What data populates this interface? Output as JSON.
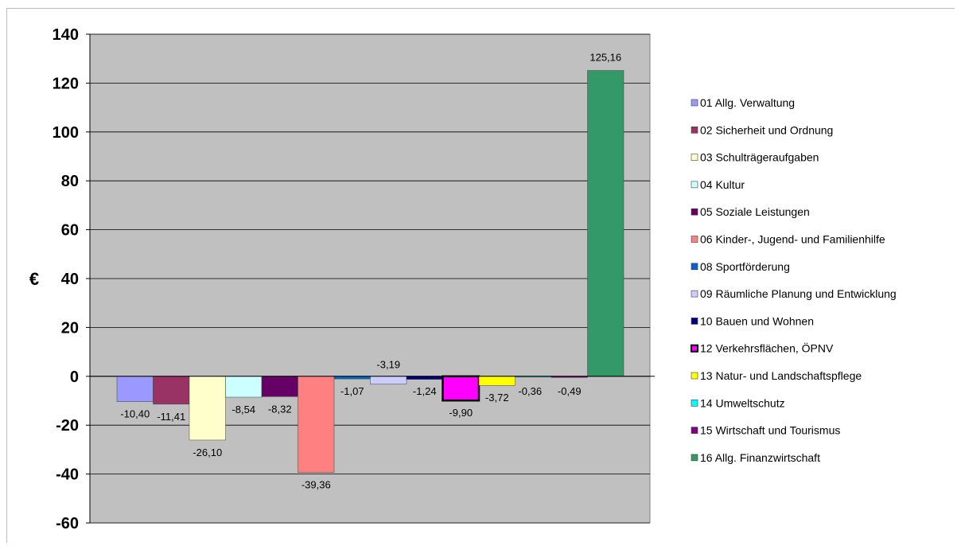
{
  "chart_data": {
    "type": "bar",
    "title": "",
    "xlabel": "",
    "ylabel": "€",
    "ylim": [
      -60,
      140
    ],
    "ytick_step": 20,
    "grid": true,
    "legend_position": "right",
    "plot_background": "#c0c0c0",
    "series": [
      {
        "name": "01 Allg. Verwaltung",
        "value": -10.4,
        "label": "-10,40",
        "color": "#9999ff"
      },
      {
        "name": "02 Sicherheit und Ordnung",
        "value": -11.41,
        "label": "-11,41",
        "color": "#993366"
      },
      {
        "name": "03 Schulträgeraufgaben",
        "value": -26.1,
        "label": "-26,10",
        "color": "#ffffcc"
      },
      {
        "name": "04 Kultur",
        "value": -8.54,
        "label": "-8,54",
        "color": "#ccffff"
      },
      {
        "name": "05 Soziale Leistungen",
        "value": -8.32,
        "label": "-8,32",
        "color": "#660066"
      },
      {
        "name": "06 Kinder-, Jugend- und Familienhilfe",
        "value": -39.36,
        "label": "-39,36",
        "color": "#ff8080"
      },
      {
        "name": "08 Sportförderung",
        "value": -1.07,
        "label": "-1,07",
        "color": "#0066cc"
      },
      {
        "name": "09 Räumliche Planung und Entwicklung",
        "value": -3.19,
        "label": "-3,19",
        "color": "#ccccff"
      },
      {
        "name": "10 Bauen und Wohnen",
        "value": -1.24,
        "label": "-1,24",
        "color": "#000080"
      },
      {
        "name": "12 Verkehrsflächen, ÖPNV",
        "value": -9.9,
        "label": "-9,90",
        "color": "#ff00ff"
      },
      {
        "name": "13 Natur- und Landschaftspflege",
        "value": -3.72,
        "label": "-3,72",
        "color": "#ffff00"
      },
      {
        "name": "14 Umweltschutz",
        "value": -0.36,
        "label": "-0,36",
        "color": "#00ffff"
      },
      {
        "name": "15 Wirtschaft und Tourismus",
        "value": -0.49,
        "label": "-0,49",
        "color": "#800080"
      },
      {
        "name": "16 Allg. Finanzwirtschaft",
        "value": 125.16,
        "label": "125,16",
        "color": "#339966"
      }
    ]
  }
}
